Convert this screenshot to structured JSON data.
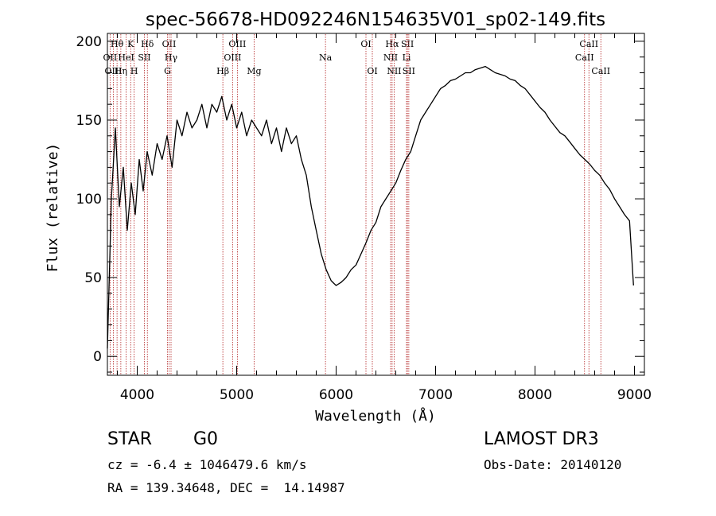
{
  "chart_data": {
    "type": "line",
    "title": "spec-56678-HD092246N154635V01_sp02-149.fits",
    "xlabel": "Wavelength (Å)",
    "ylabel": "Flux (relative)",
    "xlim": [
      3700,
      9100
    ],
    "ylim": [
      -12,
      205
    ],
    "xticks": [
      4000,
      5000,
      6000,
      7000,
      8000,
      9000
    ],
    "yticks": [
      0,
      50,
      100,
      150,
      200
    ],
    "series": [
      {
        "name": "spectrum",
        "x": [
          3700,
          3740,
          3780,
          3820,
          3860,
          3900,
          3940,
          3980,
          4020,
          4060,
          4100,
          4150,
          4200,
          4250,
          4300,
          4350,
          4400,
          4450,
          4500,
          4550,
          4600,
          4650,
          4700,
          4750,
          4800,
          4850,
          4900,
          4950,
          5000,
          5050,
          5100,
          5150,
          5200,
          5250,
          5300,
          5350,
          5400,
          5450,
          5500,
          5550,
          5600,
          5650,
          5700,
          5750,
          5800,
          5850,
          5900,
          5950,
          6000,
          6050,
          6100,
          6150,
          6200,
          6250,
          6300,
          6350,
          6400,
          6450,
          6500,
          6550,
          6600,
          6650,
          6700,
          6750,
          6800,
          6850,
          6900,
          6950,
          7000,
          7050,
          7100,
          7150,
          7200,
          7250,
          7300,
          7350,
          7400,
          7450,
          7500,
          7550,
          7600,
          7650,
          7700,
          7750,
          7800,
          7850,
          7900,
          7950,
          8000,
          8050,
          8100,
          8150,
          8200,
          8250,
          8300,
          8350,
          8400,
          8450,
          8500,
          8550,
          8600,
          8650,
          8700,
          8750,
          8800,
          8850,
          8900,
          8950,
          8990
        ],
        "y": [
          5,
          100,
          145,
          95,
          120,
          80,
          110,
          90,
          125,
          105,
          130,
          115,
          135,
          125,
          140,
          120,
          150,
          140,
          155,
          145,
          150,
          160,
          145,
          160,
          155,
          165,
          150,
          160,
          145,
          155,
          140,
          150,
          145,
          140,
          150,
          135,
          145,
          130,
          145,
          135,
          140,
          125,
          115,
          95,
          80,
          65,
          55,
          48,
          45,
          47,
          50,
          55,
          58,
          65,
          72,
          80,
          85,
          95,
          100,
          105,
          110,
          118,
          125,
          130,
          140,
          150,
          155,
          160,
          165,
          170,
          172,
          175,
          176,
          178,
          180,
          180,
          182,
          183,
          184,
          182,
          180,
          179,
          178,
          176,
          175,
          172,
          170,
          166,
          162,
          158,
          155,
          150,
          146,
          142,
          140,
          136,
          132,
          128,
          125,
          122,
          118,
          115,
          110,
          106,
          100,
          95,
          90,
          86,
          45
        ]
      }
    ],
    "line_markers": [
      {
        "label": "Hθ",
        "x": 3797,
        "row": 0
      },
      {
        "label": "K",
        "x": 3934,
        "row": 0
      },
      {
        "label": "Hδ",
        "x": 4102,
        "row": 0
      },
      {
        "label": "OII",
        "x": 4320,
        "row": 0
      },
      {
        "label": "OIII",
        "x": 5007,
        "row": 0
      },
      {
        "label": "OI",
        "x": 6300,
        "row": 0
      },
      {
        "label": "Hα",
        "x": 6563,
        "row": 0
      },
      {
        "label": "SII",
        "x": 6717,
        "row": 0
      },
      {
        "label": "CaII",
        "x": 8542,
        "row": 0
      },
      {
        "label": "OII",
        "x": 3727,
        "row": 1
      },
      {
        "label": "HeI",
        "x": 3889,
        "row": 1
      },
      {
        "label": "SII",
        "x": 4072,
        "row": 1
      },
      {
        "label": "Hγ",
        "x": 4340,
        "row": 1
      },
      {
        "label": "OIII",
        "x": 4959,
        "row": 1
      },
      {
        "label": "Na",
        "x": 5893,
        "row": 1
      },
      {
        "label": "NII",
        "x": 6548,
        "row": 1
      },
      {
        "label": "Li",
        "x": 6708,
        "row": 1
      },
      {
        "label": "CaII",
        "x": 8498,
        "row": 1
      },
      {
        "label": "OIII",
        "x": 3760,
        "row": 2
      },
      {
        "label": "Hη",
        "x": 3835,
        "row": 2
      },
      {
        "label": "H",
        "x": 3969,
        "row": 2
      },
      {
        "label": "G",
        "x": 4304,
        "row": 2
      },
      {
        "label": "Hβ",
        "x": 4861,
        "row": 2
      },
      {
        "label": "Mg",
        "x": 5175,
        "row": 2
      },
      {
        "label": "OI",
        "x": 6364,
        "row": 2
      },
      {
        "label": "NII",
        "x": 6583,
        "row": 2
      },
      {
        "label": "SII",
        "x": 6731,
        "row": 2
      },
      {
        "label": "CaII",
        "x": 8662,
        "row": 2
      }
    ]
  },
  "info": {
    "object_class": "STAR",
    "subclass": "G0",
    "survey": "LAMOST DR3",
    "cz": "cz = -6.4 ± 1046479.6 km/s",
    "obs_date": "Obs-Date: 20140120",
    "coords": "RA = 139.34648, DEC =  14.14987"
  },
  "colors": {
    "spectrum": "#000000",
    "markers": "#b22222",
    "axes": "#000000"
  }
}
